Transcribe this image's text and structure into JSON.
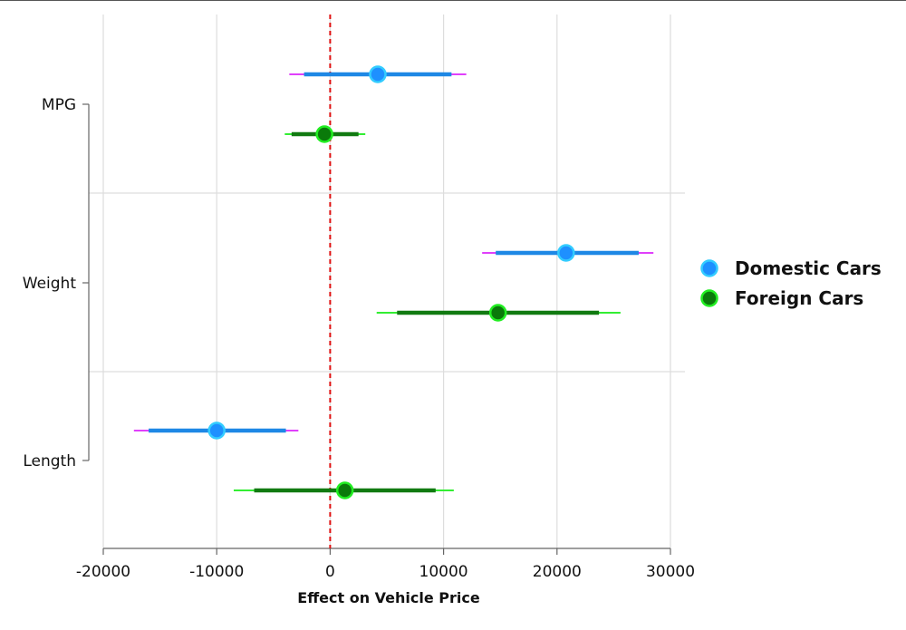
{
  "chart_data": {
    "type": "coefficient-plot",
    "xlabel": "Effect on Vehicle Price",
    "ylabel": "",
    "xlim": [
      -20000,
      30000
    ],
    "xticks": [
      -20000,
      -10000,
      0,
      10000,
      20000,
      30000
    ],
    "xtick_labels": [
      "-20000",
      "-10000",
      "0",
      "10000",
      "20000",
      "30000"
    ],
    "reference_line": 0,
    "categories": [
      "MPG",
      "Weight",
      "Length"
    ],
    "grid": true,
    "legend_position": "right",
    "series": [
      {
        "name": "Domestic Cars",
        "fill": "#1e90ff",
        "outline": "#33ccff",
        "inner_ci_color": "#1e88e5",
        "outer_ci_color": "#e040fb",
        "points": [
          {
            "category": "MPG",
            "estimate": 4200,
            "ci_inner": [
              -2300,
              10700
            ],
            "ci_outer": [
              -3600,
              12000
            ]
          },
          {
            "category": "Weight",
            "estimate": 20800,
            "ci_inner": [
              14600,
              27200
            ],
            "ci_outer": [
              13400,
              28500
            ]
          },
          {
            "category": "Length",
            "estimate": -10000,
            "ci_inner": [
              -16000,
              -3900
            ],
            "ci_outer": [
              -17300,
              -2800
            ]
          }
        ]
      },
      {
        "name": "Foreign Cars",
        "fill": "#0a7a0a",
        "outline": "#22ee22",
        "inner_ci_color": "#117a11",
        "outer_ci_color": "#33ee33",
        "points": [
          {
            "category": "MPG",
            "estimate": -500,
            "ci_inner": [
              -3400,
              2500
            ],
            "ci_outer": [
              -4000,
              3100
            ]
          },
          {
            "category": "Weight",
            "estimate": 14800,
            "ci_inner": [
              5900,
              23700
            ],
            "ci_outer": [
              4100,
              25600
            ]
          },
          {
            "category": "Length",
            "estimate": 1300,
            "ci_inner": [
              -6700,
              9300
            ],
            "ci_outer": [
              -8500,
              10900
            ]
          }
        ]
      }
    ]
  }
}
